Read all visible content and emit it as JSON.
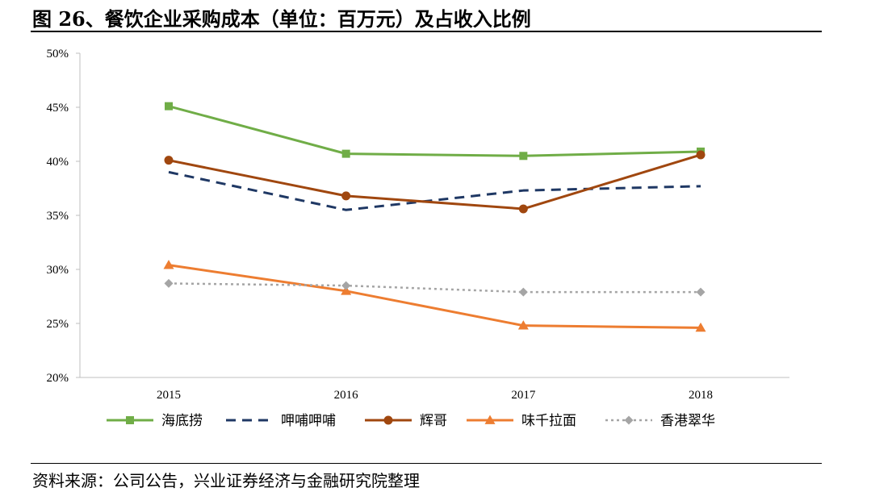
{
  "header": {
    "title": "图 26、餐饮企业采购成本（单位：百万元）及占收入比例"
  },
  "footer": {
    "source": "资料来源：公司公告，兴业证券经济与金融研究院整理"
  },
  "chart_data": {
    "type": "line",
    "title": "",
    "xlabel": "",
    "ylabel": "",
    "categories": [
      "2015",
      "2016",
      "2017",
      "2018"
    ],
    "ylim": [
      20,
      50
    ],
    "yticks": [
      "20%",
      "25%",
      "30%",
      "35%",
      "40%",
      "45%",
      "50%"
    ],
    "ytick_values": [
      20,
      25,
      30,
      35,
      40,
      45,
      50
    ],
    "grid": false,
    "legend_position": "bottom",
    "series": [
      {
        "name": "海底捞",
        "values": [
          45.1,
          40.7,
          40.5,
          40.9
        ],
        "color": "#70AD47",
        "dash": "solid",
        "marker": "square"
      },
      {
        "name": "呷哺呷哺",
        "values": [
          39.0,
          35.5,
          37.3,
          37.7
        ],
        "color": "#1F3864",
        "dash": "dashed",
        "marker": "none"
      },
      {
        "name": "辉哥",
        "values": [
          40.1,
          36.8,
          35.6,
          40.6
        ],
        "color": "#A0470F",
        "dash": "solid",
        "marker": "circle"
      },
      {
        "name": "味千拉面",
        "values": [
          30.4,
          28.0,
          24.8,
          24.6
        ],
        "color": "#ED7D31",
        "dash": "solid",
        "marker": "triangle"
      },
      {
        "name": "香港翠华",
        "values": [
          28.7,
          28.5,
          27.9,
          27.9
        ],
        "color": "#A5A5A5",
        "dash": "dotted",
        "marker": "diamond"
      }
    ]
  }
}
